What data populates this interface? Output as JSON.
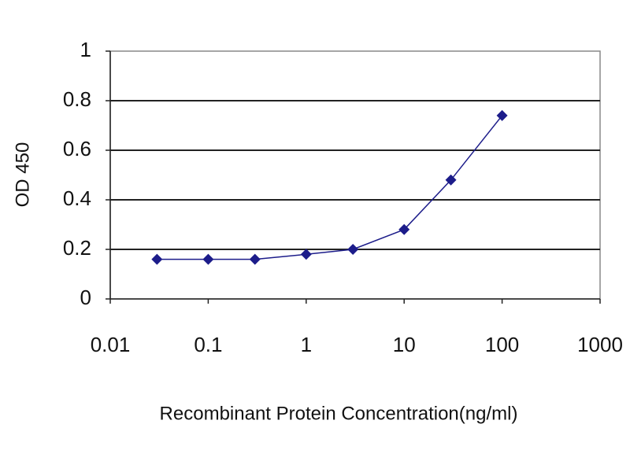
{
  "chart_data": {
    "type": "line",
    "x_label": "Recombinant Protein Concentration(ng/ml)",
    "y_label": "OD 450",
    "x_scale": "log",
    "grid": true,
    "xlim": [
      0.01,
      1000
    ],
    "xticks": [
      0.01,
      0.1,
      1,
      10,
      100,
      1000
    ],
    "ylim": [
      0,
      1
    ],
    "yticks": [
      0,
      0.2,
      0.4,
      0.6,
      0.8,
      1
    ],
    "x": [
      0.03,
      0.1,
      0.3,
      1,
      3,
      10,
      30,
      100
    ],
    "series": [
      {
        "color": "#1c1c8a",
        "values": [
          0.16,
          0.16,
          0.16,
          0.18,
          0.2,
          0.28,
          0.48,
          0.74
        ]
      }
    ]
  }
}
